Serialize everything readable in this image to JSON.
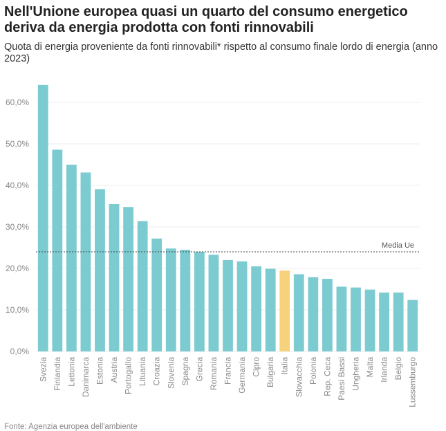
{
  "title": "Nell'Unione europea quasi un quarto del consumo energetico deriva da energia prodotta con fonti rinnovabili",
  "subtitle": "Quota di energia proveniente da fonti rinnovabili* rispetto al consumo finale lordo di energia (anno 2023)",
  "source": "Fonte: Agenzia europea dell'ambiente",
  "colors": {
    "bar": "#7ccbd1",
    "highlight": "#f7d27d",
    "grid": "#ececec",
    "average_line": "#444444"
  },
  "chart_data": {
    "type": "bar",
    "title": "Nell'Unione europea quasi un quarto del consumo energetico deriva da energia prodotta con fonti rinnovabili",
    "xlabel": "",
    "ylabel": "",
    "ylim": [
      0,
      65
    ],
    "yticks": [
      0,
      10,
      20,
      30,
      40,
      50,
      60
    ],
    "ytick_labels": [
      "0,0%",
      "10,0%",
      "20,0%",
      "30,0%",
      "40,0%",
      "50,0%",
      "60,0%"
    ],
    "grid": true,
    "categories": [
      "Svezia",
      "Finlandia",
      "Lettonia",
      "Danimarca",
      "Estonia",
      "Austria",
      "Portogallo",
      "Lituania",
      "Croazia",
      "Slovenia",
      "Spagna",
      "Grecia",
      "Romania",
      "Francia",
      "Germania",
      "Cipro",
      "Bulgaria",
      "Italia",
      "Slovacchia",
      "Polonia",
      "Rep. Ceca",
      "Paesi Bassi",
      "Ungheria",
      "Malta",
      "Irlanda",
      "Belgio",
      "Lussemburgo"
    ],
    "values": [
      64.2,
      48.6,
      45.0,
      43.1,
      39.1,
      35.5,
      34.8,
      31.4,
      27.2,
      24.8,
      24.5,
      24.0,
      23.3,
      22.0,
      21.7,
      20.5,
      19.9,
      19.5,
      18.6,
      17.9,
      17.5,
      15.6,
      15.4,
      14.9,
      14.2,
      14.2,
      12.4
    ],
    "highlight": "Italia",
    "reference_line": {
      "label": "Media Ue",
      "value": 24.0
    }
  }
}
